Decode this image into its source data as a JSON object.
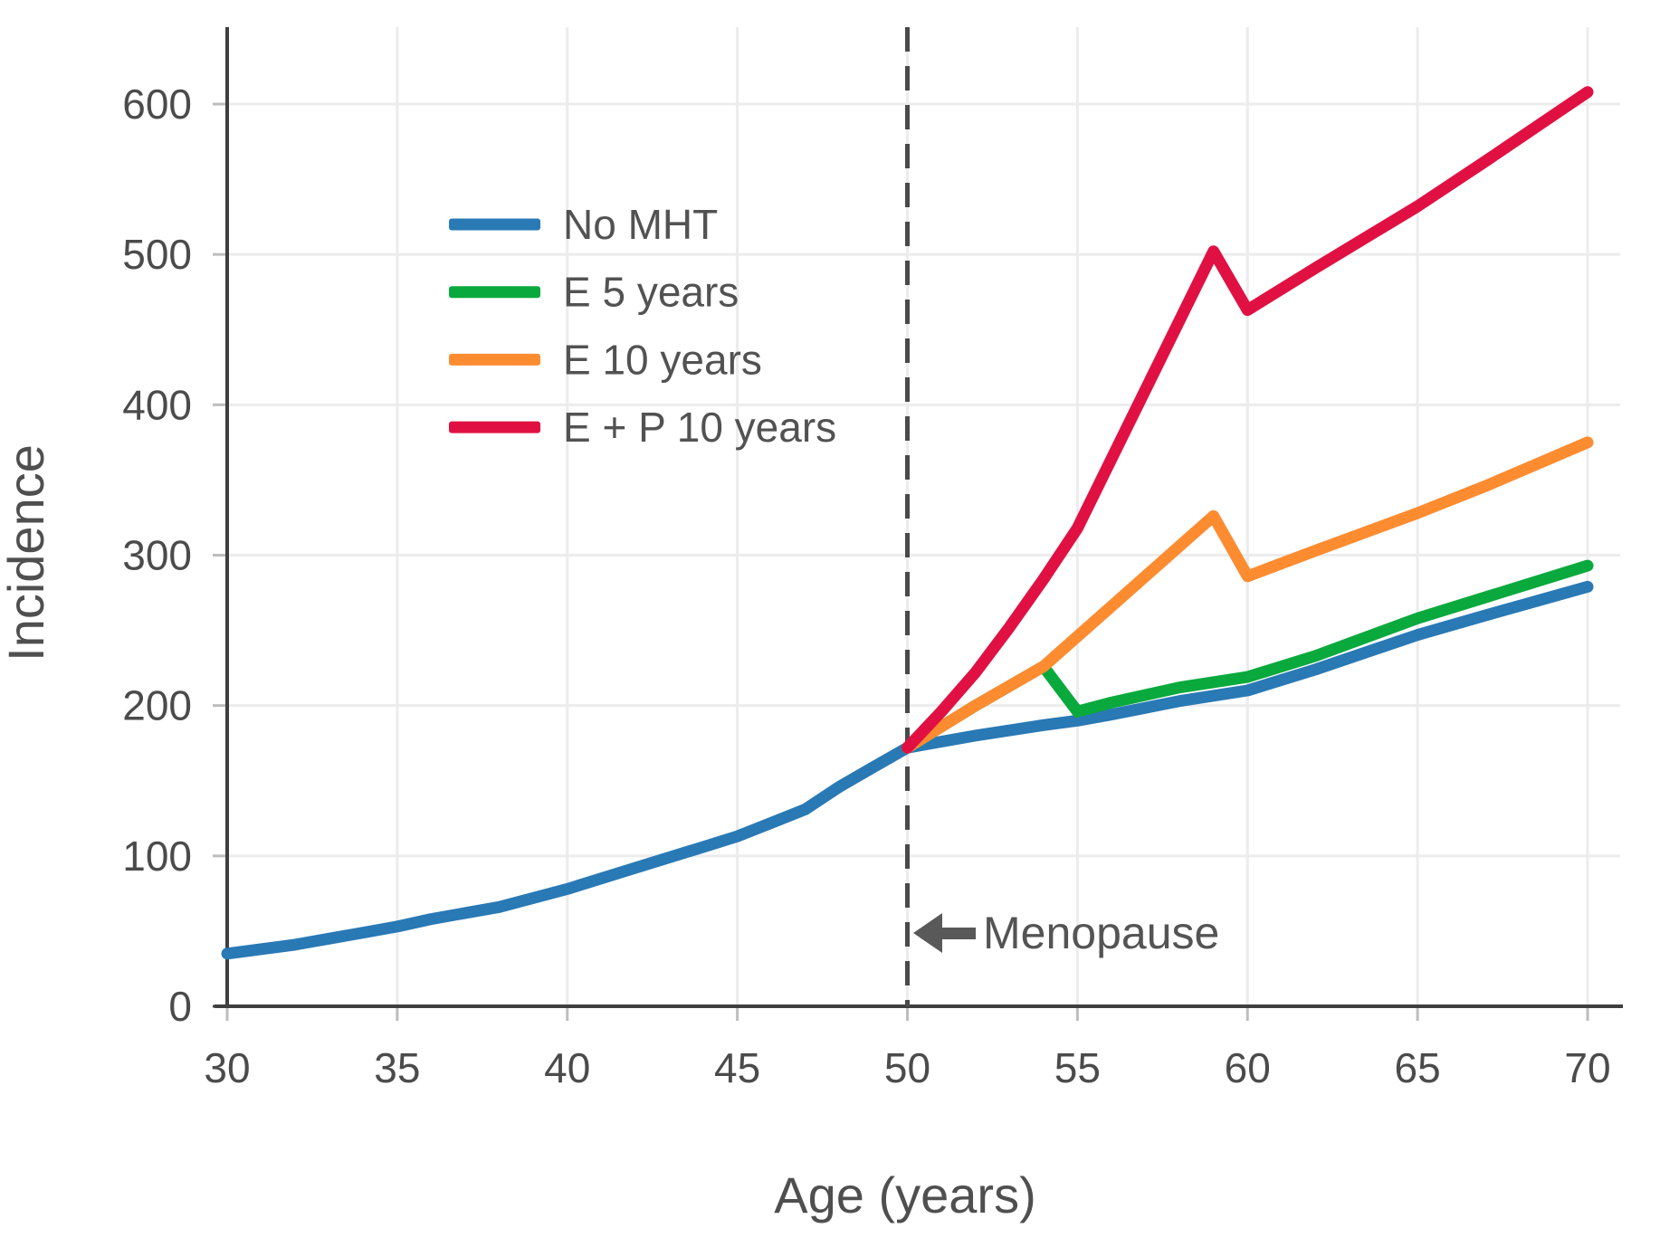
{
  "chart_data": {
    "type": "line",
    "title": "",
    "xlabel": "Age (years)",
    "ylabel": "Incidence",
    "xlim": [
      30,
      70
    ],
    "ylim": [
      0,
      650
    ],
    "x_ticks": [
      30,
      35,
      40,
      45,
      50,
      55,
      60,
      65,
      70
    ],
    "y_ticks": [
      0,
      100,
      200,
      300,
      400,
      500,
      600
    ],
    "grid": true,
    "legend_position": "upper-left-inside",
    "annotation": {
      "text": "Menopause"
    },
    "vline": {
      "x": 50,
      "style": "dashed",
      "color": "#4a4a4a"
    },
    "series": [
      {
        "name": "No MHT",
        "color": "#2979b5",
        "points": [
          [
            30,
            35
          ],
          [
            32,
            41
          ],
          [
            34,
            49
          ],
          [
            35,
            53
          ],
          [
            36,
            58
          ],
          [
            38,
            66
          ],
          [
            40,
            78
          ],
          [
            42,
            92
          ],
          [
            44,
            106
          ],
          [
            45,
            113
          ],
          [
            46,
            122
          ],
          [
            47,
            131
          ],
          [
            48,
            146
          ],
          [
            49,
            159
          ],
          [
            50,
            172
          ],
          [
            52,
            180
          ],
          [
            54,
            187
          ],
          [
            55,
            190
          ],
          [
            56,
            194
          ],
          [
            58,
            203
          ],
          [
            60,
            210
          ],
          [
            62,
            224
          ],
          [
            65,
            247
          ],
          [
            67,
            260
          ],
          [
            70,
            279
          ]
        ]
      },
      {
        "name": "E 5 years",
        "color": "#0aa93d",
        "points": [
          [
            50,
            172
          ],
          [
            51,
            186
          ],
          [
            52,
            200
          ],
          [
            53,
            213
          ],
          [
            54,
            226
          ],
          [
            55,
            196
          ],
          [
            56,
            202
          ],
          [
            58,
            212
          ],
          [
            60,
            219
          ],
          [
            62,
            233
          ],
          [
            65,
            258
          ],
          [
            67,
            272
          ],
          [
            70,
            293
          ]
        ]
      },
      {
        "name": "E 10 years",
        "color": "#fd8c31",
        "points": [
          [
            50,
            172
          ],
          [
            51,
            186
          ],
          [
            52,
            200
          ],
          [
            53,
            213
          ],
          [
            54,
            226
          ],
          [
            55,
            246
          ],
          [
            56,
            266
          ],
          [
            57,
            286
          ],
          [
            58,
            306
          ],
          [
            59,
            326
          ],
          [
            60,
            286
          ],
          [
            62,
            303
          ],
          [
            65,
            328
          ],
          [
            67,
            346
          ],
          [
            70,
            375
          ]
        ]
      },
      {
        "name": "E + P 10 years",
        "color": "#e01142",
        "points": [
          [
            50,
            172
          ],
          [
            51,
            196
          ],
          [
            52,
            222
          ],
          [
            53,
            252
          ],
          [
            54,
            284
          ],
          [
            55,
            318
          ],
          [
            57,
            410
          ],
          [
            59,
            502
          ],
          [
            60,
            463
          ],
          [
            62,
            491
          ],
          [
            65,
            532
          ],
          [
            67,
            562
          ],
          [
            70,
            608
          ]
        ]
      }
    ]
  }
}
